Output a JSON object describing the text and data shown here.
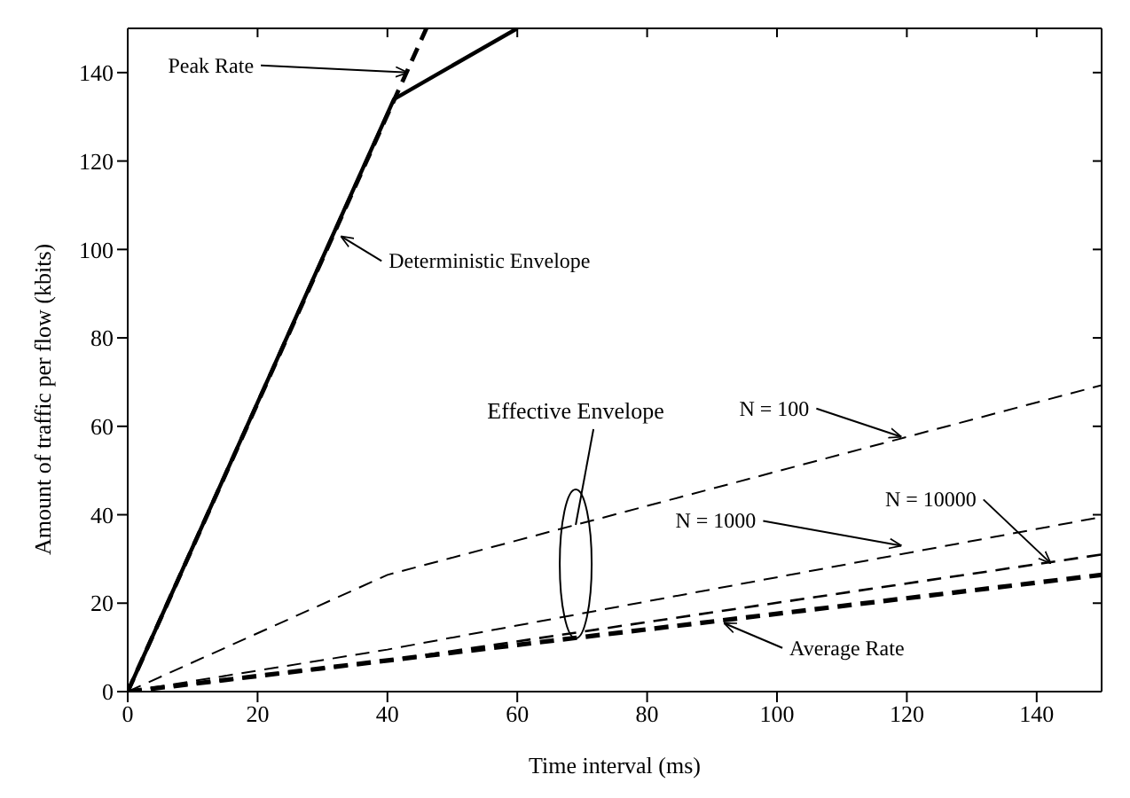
{
  "chart_data": {
    "type": "line",
    "xlabel": "Time interval (ms)",
    "ylabel": "Amount of traffic per flow (kbits)",
    "xlim": [
      0,
      150
    ],
    "ylim": [
      0,
      150
    ],
    "xticks": [
      0,
      20,
      40,
      60,
      80,
      100,
      120,
      140
    ],
    "yticks": [
      0,
      20,
      40,
      60,
      80,
      100,
      120,
      140
    ],
    "marker": "none",
    "series": [
      {
        "color": "#000000",
        "line_style": "dashed",
        "x": [
          0,
          46
        ],
        "values": [
          0,
          150
        ]
      },
      {
        "color": "#000000",
        "line_style": "solid",
        "x": [
          0,
          41,
          60
        ],
        "values": [
          0,
          134,
          150
        ]
      },
      {
        "color": "#000000",
        "line_style": "dashed",
        "x": [
          0,
          40,
          150
        ],
        "values": [
          0,
          26.4,
          69.3
        ]
      },
      {
        "color": "#000000",
        "line_style": "dashed",
        "x": [
          0,
          40,
          150
        ],
        "values": [
          0,
          9.5,
          39.5
        ]
      },
      {
        "color": "#000000",
        "line_style": "dashed",
        "x": [
          0,
          40,
          150
        ],
        "values": [
          0,
          7,
          31
        ]
      },
      {
        "color": "#000000",
        "line_style": "dashed",
        "x": [
          0,
          150
        ],
        "values": [
          0,
          26.4
        ]
      }
    ],
    "annotations": [
      {
        "text": "Peak Rate",
        "x": 44,
        "y": 140
      },
      {
        "text": "Deterministic Envelope",
        "x": 32,
        "y": 103
      },
      {
        "text": "N = 100",
        "x": 120,
        "y": 57.6
      },
      {
        "text": "N = 1000",
        "x": 120,
        "y": 33
      },
      {
        "text": "N = 10000",
        "x": 143,
        "y": 29
      },
      {
        "text": "Effective Envelope",
        "x": 69,
        "y": 37.7
      },
      {
        "text": "Average Rate",
        "x": 91,
        "y": 15.5
      }
    ]
  }
}
